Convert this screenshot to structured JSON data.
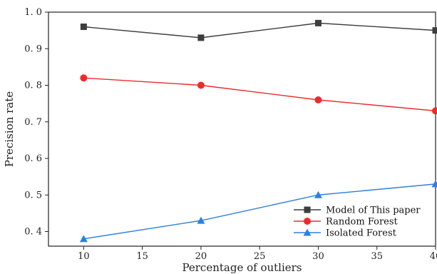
{
  "chart_data": {
    "type": "line",
    "title": "",
    "xlabel": "Percentage of outliers",
    "ylabel": "Precision rate",
    "xlim": [
      7,
      40
    ],
    "ylim": [
      0.36,
      1.0
    ],
    "x_ticks": [
      10,
      15,
      20,
      25,
      30,
      35,
      40
    ],
    "y_ticks": [
      0.4,
      0.5,
      0.6,
      0.7,
      0.8,
      0.9,
      1.0
    ],
    "x_tick_labels": [
      "10",
      "15",
      "20",
      "25",
      "30",
      "35",
      "40"
    ],
    "y_tick_labels": [
      "0. 4",
      "0. 5",
      "0. 6",
      "0. 7",
      "0. 8",
      "0. 9",
      "1. 0"
    ],
    "grid": false,
    "legend_position": "bottom-right",
    "x": [
      10,
      20,
      30,
      40
    ],
    "series": [
      {
        "name": "Model of This paper",
        "values": [
          0.96,
          0.93,
          0.97,
          0.95
        ],
        "color": "#3d3d3d",
        "marker": "square"
      },
      {
        "name": "Random Forest",
        "values": [
          0.82,
          0.8,
          0.76,
          0.73
        ],
        "color": "#ee2b2b",
        "marker": "circle"
      },
      {
        "name": "Isolated Forest",
        "values": [
          0.38,
          0.43,
          0.5,
          0.53
        ],
        "color": "#2f7fe0",
        "marker": "triangle"
      }
    ]
  }
}
